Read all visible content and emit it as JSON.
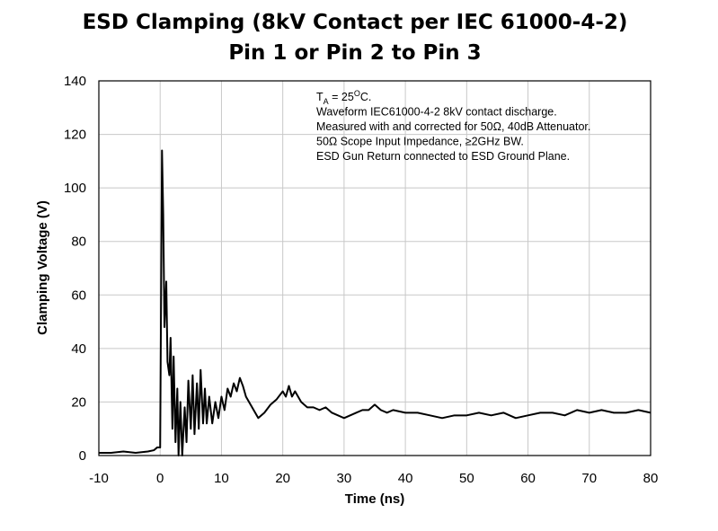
{
  "chart_data": {
    "type": "line",
    "title": "ESD Clamping (8kV Contact per IEC 61000-4-2)",
    "subtitle": "Pin 1 or Pin 2 to Pin 3",
    "x_label": "Time (ns)",
    "y_label": "Clamping Voltage (V)",
    "annotations": [
      [
        "T",
        "A",
        " = 25",
        "O",
        "C."
      ],
      "Waveform IEC61000-4-2 8kV contact discharge.",
      "Measured with and corrected for 50Ω, 40dB Attenuator.",
      "50Ω Scope Input Impedance, ≥2GHz BW.",
      "ESD Gun Return connected to ESD Ground Plane."
    ],
    "x": [
      -10,
      -8,
      -6,
      -4,
      -2,
      -1,
      -0.5,
      0,
      0.3,
      0.5,
      0.7,
      1,
      1.2,
      1.5,
      1.7,
      2,
      2.2,
      2.5,
      2.8,
      3,
      3.3,
      3.6,
      4,
      4.3,
      4.6,
      5,
      5.3,
      5.6,
      6,
      6.3,
      6.6,
      7,
      7.3,
      7.6,
      8,
      8.5,
      9,
      9.5,
      10,
      10.5,
      11,
      11.5,
      12,
      12.5,
      13,
      13.5,
      14,
      15,
      16,
      17,
      18,
      19,
      20,
      20.5,
      21,
      21.5,
      22,
      23,
      24,
      25,
      26,
      27,
      28,
      29,
      30,
      31,
      32,
      33,
      34,
      35,
      36,
      37,
      38,
      40,
      42,
      44,
      46,
      48,
      50,
      52,
      54,
      56,
      58,
      60,
      62,
      64,
      66,
      68,
      70,
      72,
      74,
      76,
      78,
      80
    ],
    "series": [
      {
        "color": "#000000",
        "values": [
          1,
          1,
          1.5,
          1,
          1.5,
          2,
          3,
          3,
          114,
          90,
          48,
          65,
          35,
          30,
          44,
          10,
          37,
          5,
          25,
          0,
          20,
          0,
          18,
          5,
          28,
          10,
          30,
          8,
          27,
          10,
          32,
          12,
          25,
          12,
          22,
          12,
          20,
          14,
          22,
          17,
          25,
          22,
          27,
          24,
          29,
          26,
          22,
          18,
          14,
          16,
          19,
          21,
          24,
          22,
          26,
          22,
          24,
          20,
          18,
          18,
          17,
          18,
          16,
          15,
          14,
          15,
          16,
          17,
          17,
          19,
          17,
          16,
          17,
          16,
          16,
          15,
          14,
          15,
          15,
          16,
          15,
          16,
          14,
          15,
          16,
          16,
          15,
          17,
          16,
          17,
          16,
          16,
          17,
          16
        ]
      }
    ],
    "xlim": [
      -10,
      80
    ],
    "xticks": [
      -10,
      0,
      10,
      20,
      30,
      40,
      50,
      60,
      70,
      80
    ],
    "ylim": [
      0,
      140
    ],
    "yticks": [
      0,
      20,
      40,
      60,
      80,
      100,
      120,
      140
    ],
    "grid": true
  }
}
